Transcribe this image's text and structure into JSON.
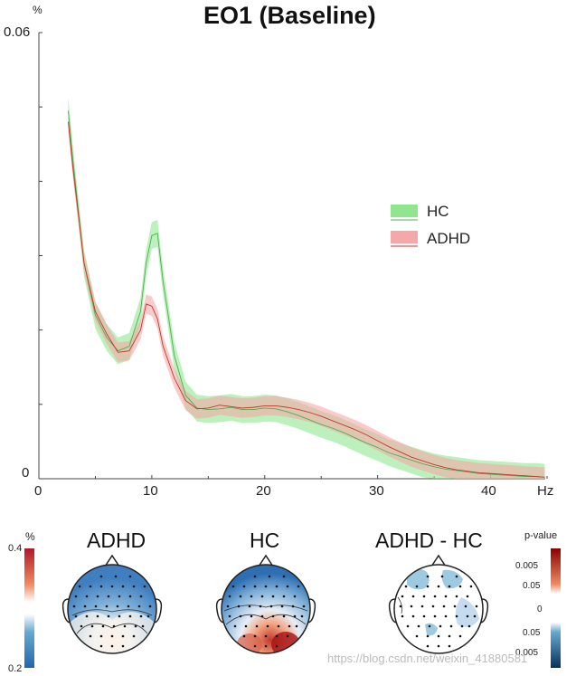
{
  "chart_data": {
    "type": "line",
    "title": "EO1 (Baseline)",
    "ylabel": "%",
    "xlabel": "Hz",
    "xlim": [
      0,
      45
    ],
    "ylim": [
      0,
      0.06
    ],
    "x_ticks": [
      "0",
      "10",
      "20",
      "30",
      "40"
    ],
    "y_ticks": [
      "0",
      "0.06"
    ],
    "grid": false,
    "legend": "middle-right",
    "series": [
      {
        "name": "HC",
        "color": "#8fe68f",
        "line_color": "#4caf50",
        "x": [
          2.6,
          3,
          4,
          5,
          6,
          7,
          8,
          9,
          9.5,
          10,
          10.5,
          11,
          12,
          13,
          14,
          15,
          16,
          17,
          18,
          19,
          20,
          21,
          22,
          23,
          24,
          25,
          26,
          27,
          28,
          29,
          30,
          31,
          32,
          33,
          34,
          35,
          36,
          37,
          38,
          39,
          40,
          41,
          42,
          43,
          44,
          44.8
        ],
        "y": [
          0.0495,
          0.043,
          0.029,
          0.022,
          0.019,
          0.0172,
          0.0178,
          0.0225,
          0.029,
          0.0327,
          0.033,
          0.0265,
          0.0165,
          0.0112,
          0.0095,
          0.0093,
          0.0094,
          0.0096,
          0.0093,
          0.0093,
          0.0095,
          0.0094,
          0.009,
          0.0085,
          0.0079,
          0.0073,
          0.0068,
          0.0062,
          0.0055,
          0.0048,
          0.0042,
          0.0035,
          0.003,
          0.0025,
          0.002,
          0.0016,
          0.0013,
          0.0011,
          0.0009,
          0.0007,
          0.0006,
          0.0005,
          0.0004,
          0.0003,
          0.0003,
          0.0002
        ],
        "band": 0.0018
      },
      {
        "name": "ADHD",
        "color": "#f5a8a8",
        "line_color": "#c0392b",
        "x": [
          2.6,
          3,
          4,
          5,
          6,
          7,
          8,
          9,
          9.5,
          10,
          10.5,
          11,
          12,
          13,
          14,
          15,
          16,
          17,
          18,
          19,
          20,
          21,
          22,
          23,
          24,
          25,
          26,
          27,
          28,
          29,
          30,
          31,
          32,
          33,
          34,
          35,
          36,
          37,
          38,
          39,
          40,
          41,
          42,
          43,
          44,
          44.8
        ],
        "y": [
          0.048,
          0.042,
          0.029,
          0.0225,
          0.0195,
          0.017,
          0.0172,
          0.02,
          0.0235,
          0.0232,
          0.0215,
          0.0178,
          0.0135,
          0.0105,
          0.0094,
          0.0095,
          0.0099,
          0.0097,
          0.0095,
          0.0096,
          0.0098,
          0.0098,
          0.0096,
          0.0093,
          0.0089,
          0.0084,
          0.0078,
          0.0072,
          0.0066,
          0.0059,
          0.0051,
          0.0043,
          0.0036,
          0.0029,
          0.0024,
          0.0019,
          0.0015,
          0.0012,
          0.001,
          0.0008,
          0.0007,
          0.0006,
          0.0005,
          0.0004,
          0.0003,
          0.0002
        ],
        "band": 0.0013
      }
    ]
  },
  "topomaps": {
    "unit": "%",
    "scale_top": "0.4",
    "scale_bottom": "0.2",
    "maps": [
      {
        "label": "ADHD"
      },
      {
        "label": "HC"
      },
      {
        "label": "ADHD - HC"
      }
    ],
    "pvalue_label": "p-value",
    "pvalue_ticks": [
      "0.005",
      "0.05",
      "0",
      "0.05",
      "0.005"
    ]
  },
  "watermark": "https://blog.csdn.net/weixin_41880581"
}
